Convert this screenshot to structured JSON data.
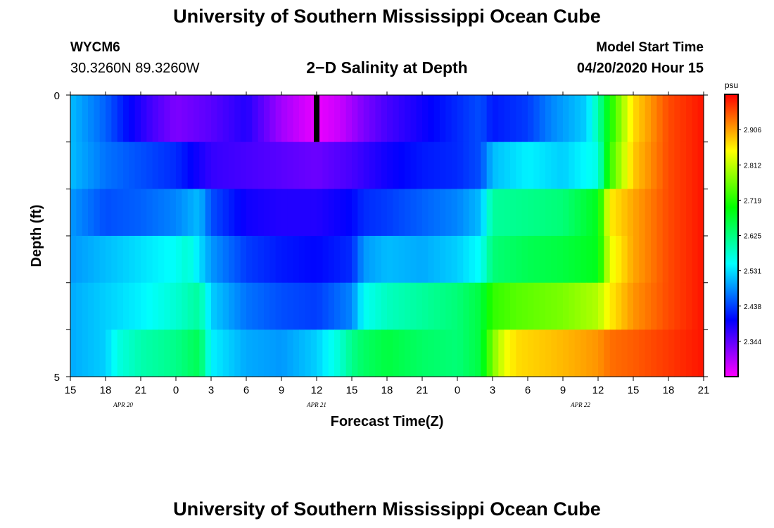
{
  "header": {
    "title": "University of Southern Mississippi Ocean Cube",
    "station": "WYCM6",
    "coordinates": "30.3260N 89.3260W",
    "subtitle": "2−D Salinity at Depth",
    "start_label": "Model Start Time",
    "start_value": "04/20/2020 Hour 15"
  },
  "footer": {
    "title": "University of Southern Mississippi Ocean Cube"
  },
  "chart_data": {
    "type": "heatmap",
    "title": "2−D Salinity at Depth",
    "xlabel": "Forecast Time(Z)",
    "ylabel": "Depth (ft)",
    "x_ticks": [
      "15",
      "18",
      "21",
      "0",
      "3",
      "6",
      "9",
      "12",
      "15",
      "18",
      "21",
      "0",
      "3",
      "6",
      "9",
      "12",
      "15",
      "18",
      "21"
    ],
    "x_hours": [
      0,
      3,
      6,
      9,
      12,
      15,
      18,
      21,
      24,
      27,
      30,
      33,
      36,
      39,
      42,
      45,
      48,
      51,
      54
    ],
    "date_labels": [
      {
        "text": "APR 20",
        "hour": 4.5
      },
      {
        "text": "APR 21",
        "hour": 21
      },
      {
        "text": "APR 22",
        "hour": 43.5
      }
    ],
    "y_ticks": [
      "0",
      "5"
    ],
    "ylim": [
      0,
      5
    ],
    "depth_layers": [
      0,
      1,
      2,
      3,
      4
    ],
    "colorbar": {
      "unit": "psu",
      "ticks": [
        "2.344",
        "2.438",
        "2.531",
        "2.625",
        "2.719",
        "2.812",
        "2.906"
      ],
      "min": 2.28,
      "max": 2.97,
      "colors": [
        "#ff00ff",
        "#8000ff",
        "#0000ff",
        "#0080ff",
        "#00ffff",
        "#00ff80",
        "#00ff00",
        "#80ff00",
        "#ffff00",
        "#ff8000",
        "#ff0000"
      ]
    },
    "marker": {
      "hour": 21,
      "layer": 0,
      "color": "#000000"
    },
    "series": [
      {
        "depth_ft": 0,
        "hours": [
          0,
          3,
          5,
          7,
          9,
          12,
          15,
          18,
          21,
          23,
          25,
          27,
          30,
          33,
          35,
          36,
          39,
          41,
          44,
          45,
          46,
          48,
          51,
          54
        ],
        "values": [
          2.52,
          2.47,
          2.42,
          2.38,
          2.35,
          2.37,
          2.4,
          2.33,
          2.29,
          2.31,
          2.35,
          2.38,
          2.41,
          2.44,
          2.46,
          2.43,
          2.45,
          2.49,
          2.53,
          2.6,
          2.7,
          2.85,
          2.93,
          2.96
        ]
      },
      {
        "depth_ft": 1,
        "hours": [
          0,
          3,
          6,
          9,
          12,
          15,
          18,
          21,
          24,
          27,
          30,
          33,
          35,
          36,
          39,
          42,
          45,
          46,
          48,
          51,
          54
        ],
        "values": [
          2.52,
          2.48,
          2.46,
          2.44,
          2.39,
          2.38,
          2.37,
          2.36,
          2.38,
          2.41,
          2.43,
          2.44,
          2.46,
          2.52,
          2.55,
          2.53,
          2.57,
          2.72,
          2.86,
          2.93,
          2.96
        ]
      },
      {
        "depth_ft": 2,
        "hours": [
          0,
          3,
          6,
          9,
          11,
          12,
          15,
          18,
          21,
          24,
          25,
          27,
          30,
          33,
          35,
          36,
          39,
          42,
          45,
          46,
          48,
          51,
          54
        ],
        "values": [
          2.5,
          2.46,
          2.47,
          2.49,
          2.52,
          2.46,
          2.41,
          2.4,
          2.4,
          2.42,
          2.44,
          2.45,
          2.47,
          2.49,
          2.52,
          2.61,
          2.62,
          2.63,
          2.68,
          2.84,
          2.88,
          2.93,
          2.96
        ]
      },
      {
        "depth_ft": 3,
        "hours": [
          0,
          3,
          6,
          9,
          10,
          12,
          15,
          18,
          21,
          24,
          25,
          27,
          30,
          33,
          35,
          36,
          39,
          42,
          45,
          46,
          48,
          51,
          54
        ],
        "values": [
          2.5,
          2.52,
          2.54,
          2.56,
          2.58,
          2.5,
          2.45,
          2.43,
          2.42,
          2.44,
          2.5,
          2.52,
          2.51,
          2.53,
          2.56,
          2.63,
          2.65,
          2.66,
          2.68,
          2.82,
          2.88,
          2.93,
          2.96
        ]
      },
      {
        "depth_ft": 4,
        "hours": [
          0,
          3,
          6,
          9,
          11,
          12,
          15,
          18,
          21,
          24,
          25,
          27,
          30,
          33,
          35,
          36,
          38,
          40,
          42,
          45,
          46,
          48,
          51,
          54
        ],
        "values": [
          2.51,
          2.53,
          2.55,
          2.58,
          2.61,
          2.53,
          2.48,
          2.46,
          2.45,
          2.49,
          2.56,
          2.59,
          2.61,
          2.63,
          2.66,
          2.72,
          2.74,
          2.75,
          2.76,
          2.79,
          2.84,
          2.89,
          2.93,
          2.96
        ]
      },
      {
        "depth_ft": 5,
        "hours": [
          0,
          3,
          4,
          6,
          9,
          11,
          12,
          15,
          18,
          21,
          23,
          24,
          25,
          27,
          30,
          33,
          35,
          36,
          37,
          38,
          40,
          42,
          45,
          46,
          48,
          51,
          54
        ],
        "values": [
          2.51,
          2.53,
          2.57,
          2.6,
          2.62,
          2.65,
          2.55,
          2.51,
          2.5,
          2.53,
          2.58,
          2.62,
          2.64,
          2.66,
          2.64,
          2.63,
          2.66,
          2.76,
          2.82,
          2.85,
          2.86,
          2.87,
          2.89,
          2.91,
          2.92,
          2.94,
          2.96
        ]
      }
    ]
  }
}
